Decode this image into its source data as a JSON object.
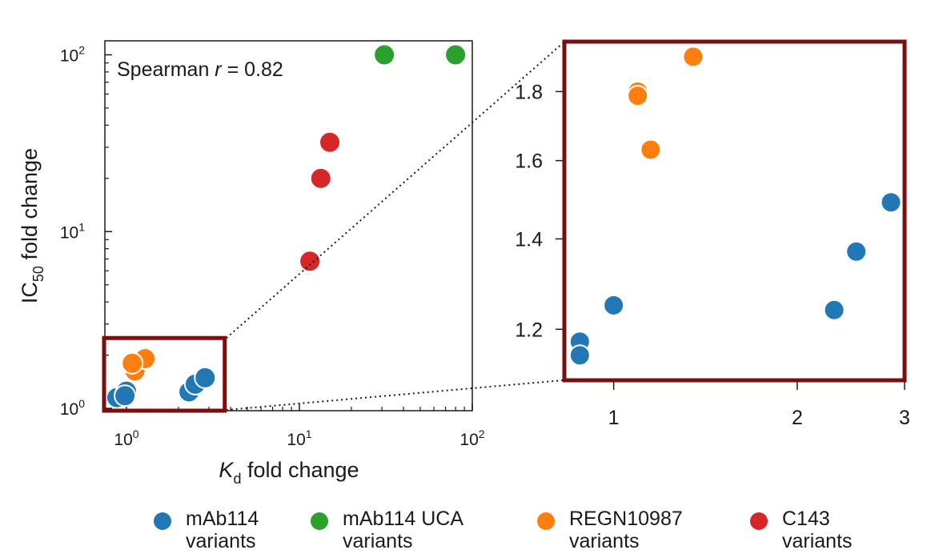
{
  "colors": {
    "mab114": "#2278b5",
    "uca": "#2ca02c",
    "regn": "#ff7f0e",
    "c143": "#d62728",
    "inset_frame": "#7a0f0f",
    "axis": "#1a1a1a"
  },
  "chart_data": [
    {
      "type": "scatter",
      "id": "main",
      "xscale": "log",
      "yscale": "log",
      "xlim": [
        0.75,
        100
      ],
      "ylim": [
        0.97,
        120
      ],
      "xlabel_main": "K",
      "xlabel_sub": "d",
      "xlabel_rest": " fold change",
      "ylabel_main": "IC",
      "ylabel_sub": "50",
      "ylabel_rest": " fold change",
      "annotation_prefix": "Spearman ",
      "annotation_italic": "r",
      "annotation_suffix": " = 0.82",
      "x_ticks": [
        {
          "value": 1,
          "base": "10",
          "exp": "0"
        },
        {
          "value": 10,
          "base": "10",
          "exp": "1"
        },
        {
          "value": 100,
          "base": "10",
          "exp": "2"
        }
      ],
      "y_ticks": [
        {
          "value": 1,
          "base": "10",
          "exp": "0"
        },
        {
          "value": 10,
          "base": "10",
          "exp": "1"
        },
        {
          "value": 100,
          "base": "10",
          "exp": "2"
        }
      ],
      "inset_region": {
        "x": [
          0.75,
          3.7
        ],
        "y": [
          0.97,
          2.5
        ]
      },
      "series": [
        {
          "name": "mAb114 variants",
          "color_key": "mab114",
          "points": [
            [
              0.88,
              1.15
            ],
            [
              1.0,
              1.25
            ],
            [
              0.98,
              1.18
            ],
            [
              2.3,
              1.24
            ],
            [
              2.5,
              1.37
            ],
            [
              2.85,
              1.49
            ]
          ]
        },
        {
          "name": "mAb114 UCA variants",
          "color_key": "uca",
          "points": [
            [
              31,
              100
            ],
            [
              80,
              100
            ]
          ]
        },
        {
          "name": "REGN10987 variants",
          "color_key": "regn",
          "points": [
            [
              1.1,
              1.79
            ],
            [
              1.12,
              1.63
            ],
            [
              1.28,
              1.91
            ],
            [
              1.08,
              1.8
            ]
          ]
        },
        {
          "name": "C143 variants",
          "color_key": "c143",
          "points": [
            [
              11.5,
              6.8
            ],
            [
              13.3,
              20
            ],
            [
              15.0,
              32
            ]
          ]
        }
      ]
    },
    {
      "type": "scatter",
      "id": "inset",
      "xscale": "log",
      "yscale": "log",
      "xlim": [
        0.83,
        3.0
      ],
      "ylim": [
        1.1,
        1.96
      ],
      "x_ticks": [
        {
          "value": 1,
          "label": "1"
        },
        {
          "value": 2,
          "label": "2"
        },
        {
          "value": 3,
          "label": "3"
        }
      ],
      "y_ticks": [
        {
          "value": 1.2,
          "label": "1.2"
        },
        {
          "value": 1.4,
          "label": "1.4"
        },
        {
          "value": 1.6,
          "label": "1.6"
        },
        {
          "value": 1.8,
          "label": "1.8"
        }
      ],
      "series": [
        {
          "name": "mAb114 variants",
          "color_key": "mab114",
          "points": [
            [
              0.88,
              1.175
            ],
            [
              0.88,
              1.148
            ],
            [
              1.0,
              1.25
            ],
            [
              2.3,
              1.24
            ],
            [
              2.5,
              1.37
            ],
            [
              2.85,
              1.49
            ]
          ]
        },
        {
          "name": "REGN10987 variants",
          "color_key": "regn",
          "points": [
            [
              1.095,
              1.8
            ],
            [
              1.095,
              1.787
            ],
            [
              1.15,
              1.63
            ],
            [
              1.35,
              1.91
            ]
          ]
        }
      ]
    }
  ],
  "legend": [
    {
      "line1": "mAb114",
      "line2": "variants",
      "color_key": "mab114"
    },
    {
      "line1": "mAb114 UCA",
      "line2": "variants",
      "color_key": "uca"
    },
    {
      "line1": "REGN10987",
      "line2": "variants",
      "color_key": "regn"
    },
    {
      "line1": "C143",
      "line2": "variants",
      "color_key": "c143"
    }
  ]
}
